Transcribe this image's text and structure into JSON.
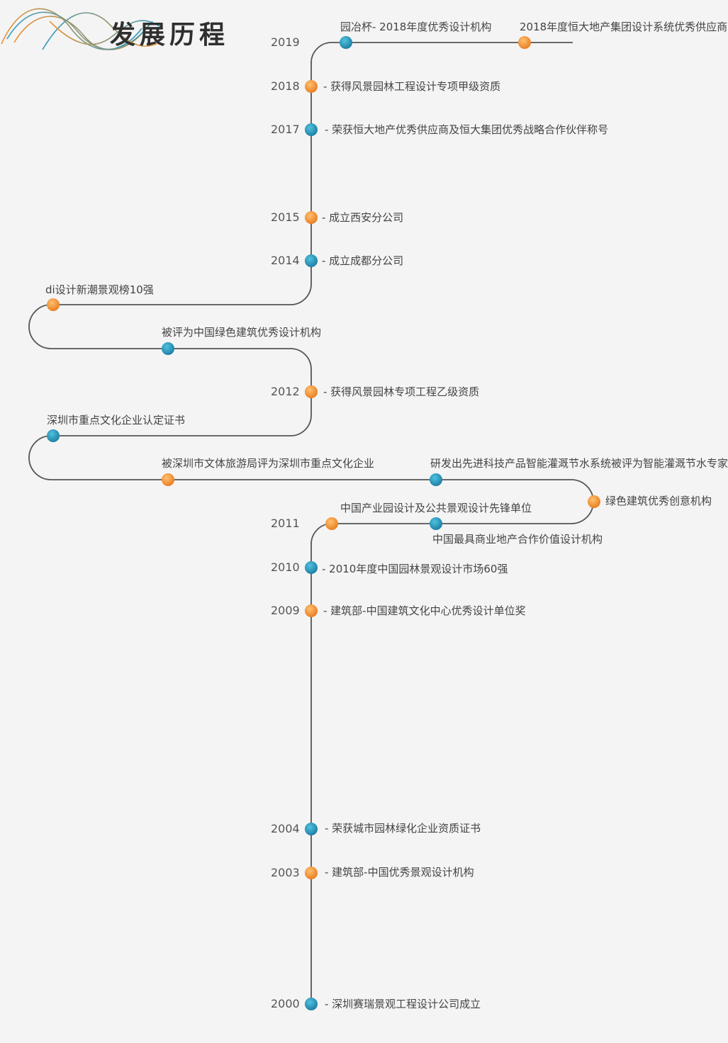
{
  "title": "发展历程",
  "colors": {
    "orange": "#f0922f",
    "blue": "#2a9bc0",
    "line": "#555555"
  },
  "milestones": [
    {
      "year": "2019",
      "label": "园冶杯- 2018年度优秀设计机构",
      "dot": "blue"
    },
    {
      "year": "",
      "label": "2018年度恒大地产集团设计系统优秀供应商",
      "dot": "orange"
    },
    {
      "year": "2018",
      "label": "- 获得风景园林工程设计专项甲级资质",
      "dot": "orange"
    },
    {
      "year": "2017",
      "label": "- 荣获恒大地产优秀供应商及恒大集团优秀战略合作伙伴称号",
      "dot": "blue"
    },
    {
      "year": "2015",
      "label": "- 成立西安分公司",
      "dot": "orange"
    },
    {
      "year": "2014",
      "label": "- 成立成都分公司",
      "dot": "blue"
    },
    {
      "year": "",
      "label": "di设计新潮景观榜10强",
      "dot": "orange"
    },
    {
      "year": "",
      "label": "被评为中国绿色建筑优秀设计机构",
      "dot": "blue"
    },
    {
      "year": "2012",
      "label": "- 获得风景园林专项工程乙级资质",
      "dot": "orange"
    },
    {
      "year": "",
      "label": "深圳市重点文化企业认定证书",
      "dot": "blue"
    },
    {
      "year": "",
      "label": "被深圳市文体旅游局评为深圳市重点文化企业",
      "dot": "orange"
    },
    {
      "year": "",
      "label": "研发出先进科技产品智能灌溉节水系统被评为智能灌溉节水专家",
      "dot": "blue"
    },
    {
      "year": "",
      "label": "绿色建筑优秀创意机构",
      "dot": "orange"
    },
    {
      "year": "",
      "label": "中国最具商业地产合作价值设计机构",
      "dot": "blue"
    },
    {
      "year": "2011",
      "label": "中国产业园设计及公共景观设计先锋单位",
      "dot": "orange"
    },
    {
      "year": "2010",
      "label": "- 2010年度中国园林景观设计市场60强",
      "dot": "blue"
    },
    {
      "year": "2009",
      "label": "- 建筑部-中国建筑文化中心优秀设计单位奖",
      "dot": "orange"
    },
    {
      "year": "2004",
      "label": "- 荣获城市园林绿化企业资质证书",
      "dot": "blue"
    },
    {
      "year": "2003",
      "label": "- 建筑部-中国优秀景观设计机构",
      "dot": "orange"
    },
    {
      "year": "2000",
      "label": "- 深圳赛瑞景观工程设计公司成立",
      "dot": "blue"
    }
  ]
}
